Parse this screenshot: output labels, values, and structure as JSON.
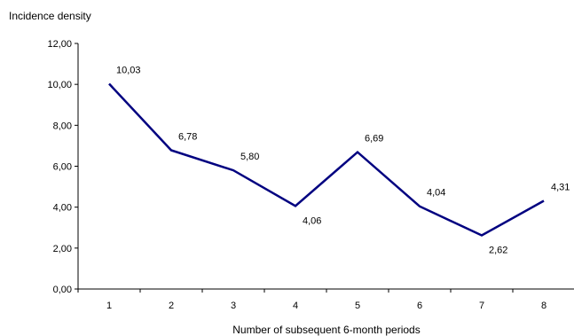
{
  "chart_data": {
    "type": "line",
    "title": "",
    "ylabel": "Incidence density",
    "xlabel": "Number of subsequent 6-month periods",
    "categories": [
      "1",
      "2",
      "3",
      "4",
      "5",
      "6",
      "7",
      "8"
    ],
    "series": [
      {
        "values": [
          10.03,
          6.78,
          5.8,
          4.06,
          6.69,
          4.04,
          2.62,
          4.31
        ],
        "labels": [
          "10,03",
          "6,78",
          "5,80",
          "4,06",
          "6,69",
          "4,04",
          "2,62",
          "4,31"
        ],
        "color": "#000080"
      }
    ],
    "ylim": [
      0,
      12
    ],
    "yticks": [
      0,
      2,
      4,
      6,
      8,
      10,
      12
    ],
    "ytick_labels": [
      "0,00",
      "2,00",
      "4,00",
      "6,00",
      "8,00",
      "10,00",
      "12,00"
    ],
    "grid": false,
    "legend": "none"
  }
}
